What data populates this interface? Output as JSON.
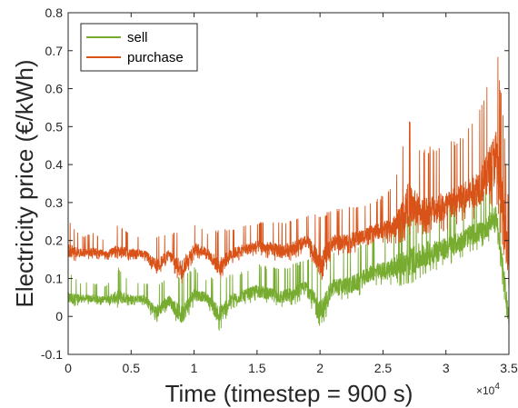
{
  "chart_data": {
    "type": "line",
    "title": "",
    "xlabel": "Time (timestep = 900 s)",
    "ylabel": "Electricity price (€/kWh)",
    "x_exponent_label": "×10",
    "x_exponent_power": "4",
    "xlim": [
      0,
      35000
    ],
    "ylim": [
      -0.1,
      0.8
    ],
    "x_ticks": [
      0,
      5000,
      10000,
      15000,
      20000,
      25000,
      30000,
      35000
    ],
    "x_tick_labels": [
      "0",
      "0.5",
      "1",
      "1.5",
      "2",
      "2.5",
      "3",
      "3.5"
    ],
    "y_ticks": [
      -0.1,
      0,
      0.1,
      0.2,
      0.3,
      0.4,
      0.5,
      0.6,
      0.7,
      0.8
    ],
    "y_tick_labels": [
      "-0.1",
      "0",
      "0.1",
      "0.2",
      "0.3",
      "0.4",
      "0.5",
      "0.6",
      "0.7",
      "0.8"
    ],
    "grid": false,
    "legend_position": "top-left",
    "series": [
      {
        "name": "sell",
        "color": "#77AC30",
        "x": [
          0,
          1000,
          2000,
          3000,
          4000,
          5000,
          6000,
          7000,
          8000,
          9000,
          10000,
          11000,
          12000,
          13000,
          14000,
          15000,
          16000,
          17000,
          18000,
          19000,
          20000,
          21000,
          22000,
          23000,
          24000,
          25000,
          26000,
          27000,
          28000,
          29000,
          30000,
          31000,
          32000,
          33000,
          34000,
          34500,
          35000
        ],
        "low": [
          0.02,
          0.03,
          0.03,
          0.03,
          0.02,
          0.03,
          0.03,
          -0.02,
          0.02,
          -0.04,
          0.03,
          0.03,
          -0.04,
          0.02,
          0.03,
          0.04,
          0.03,
          0.02,
          0.03,
          0.05,
          -0.05,
          0.04,
          0.04,
          0.05,
          0.08,
          0.08,
          0.08,
          0.08,
          0.1,
          0.12,
          0.13,
          0.15,
          0.17,
          0.18,
          0.22,
          0.08,
          -0.05
        ],
        "high": [
          0.12,
          0.09,
          0.09,
          0.08,
          0.13,
          0.09,
          0.09,
          0.09,
          0.1,
          0.11,
          0.13,
          0.1,
          0.11,
          0.11,
          0.12,
          0.14,
          0.13,
          0.13,
          0.14,
          0.15,
          0.15,
          0.17,
          0.18,
          0.19,
          0.2,
          0.22,
          0.26,
          0.3,
          0.31,
          0.3,
          0.3,
          0.31,
          0.33,
          0.34,
          0.38,
          0.25,
          0.1
        ]
      },
      {
        "name": "purchase",
        "color": "#D95319",
        "x": [
          0,
          1000,
          2000,
          3000,
          4000,
          5000,
          6000,
          7000,
          8000,
          9000,
          10000,
          11000,
          12000,
          13000,
          14000,
          15000,
          16000,
          17000,
          18000,
          19000,
          20000,
          21000,
          22000,
          23000,
          24000,
          25000,
          26000,
          27000,
          28000,
          29000,
          30000,
          31000,
          32000,
          33000,
          34000,
          34500,
          35000
        ],
        "low": [
          0.14,
          0.15,
          0.15,
          0.15,
          0.14,
          0.15,
          0.15,
          0.1,
          0.14,
          0.08,
          0.15,
          0.15,
          0.09,
          0.14,
          0.15,
          0.16,
          0.15,
          0.14,
          0.15,
          0.17,
          0.08,
          0.16,
          0.16,
          0.17,
          0.19,
          0.19,
          0.19,
          0.2,
          0.21,
          0.22,
          0.22,
          0.24,
          0.25,
          0.27,
          0.3,
          0.18,
          0.05
        ],
        "high": [
          0.26,
          0.21,
          0.22,
          0.2,
          0.25,
          0.21,
          0.21,
          0.21,
          0.22,
          0.23,
          0.25,
          0.22,
          0.23,
          0.23,
          0.24,
          0.25,
          0.25,
          0.25,
          0.26,
          0.27,
          0.27,
          0.28,
          0.29,
          0.29,
          0.3,
          0.32,
          0.36,
          0.54,
          0.44,
          0.45,
          0.46,
          0.47,
          0.51,
          0.57,
          0.74,
          0.55,
          0.3
        ]
      }
    ]
  }
}
